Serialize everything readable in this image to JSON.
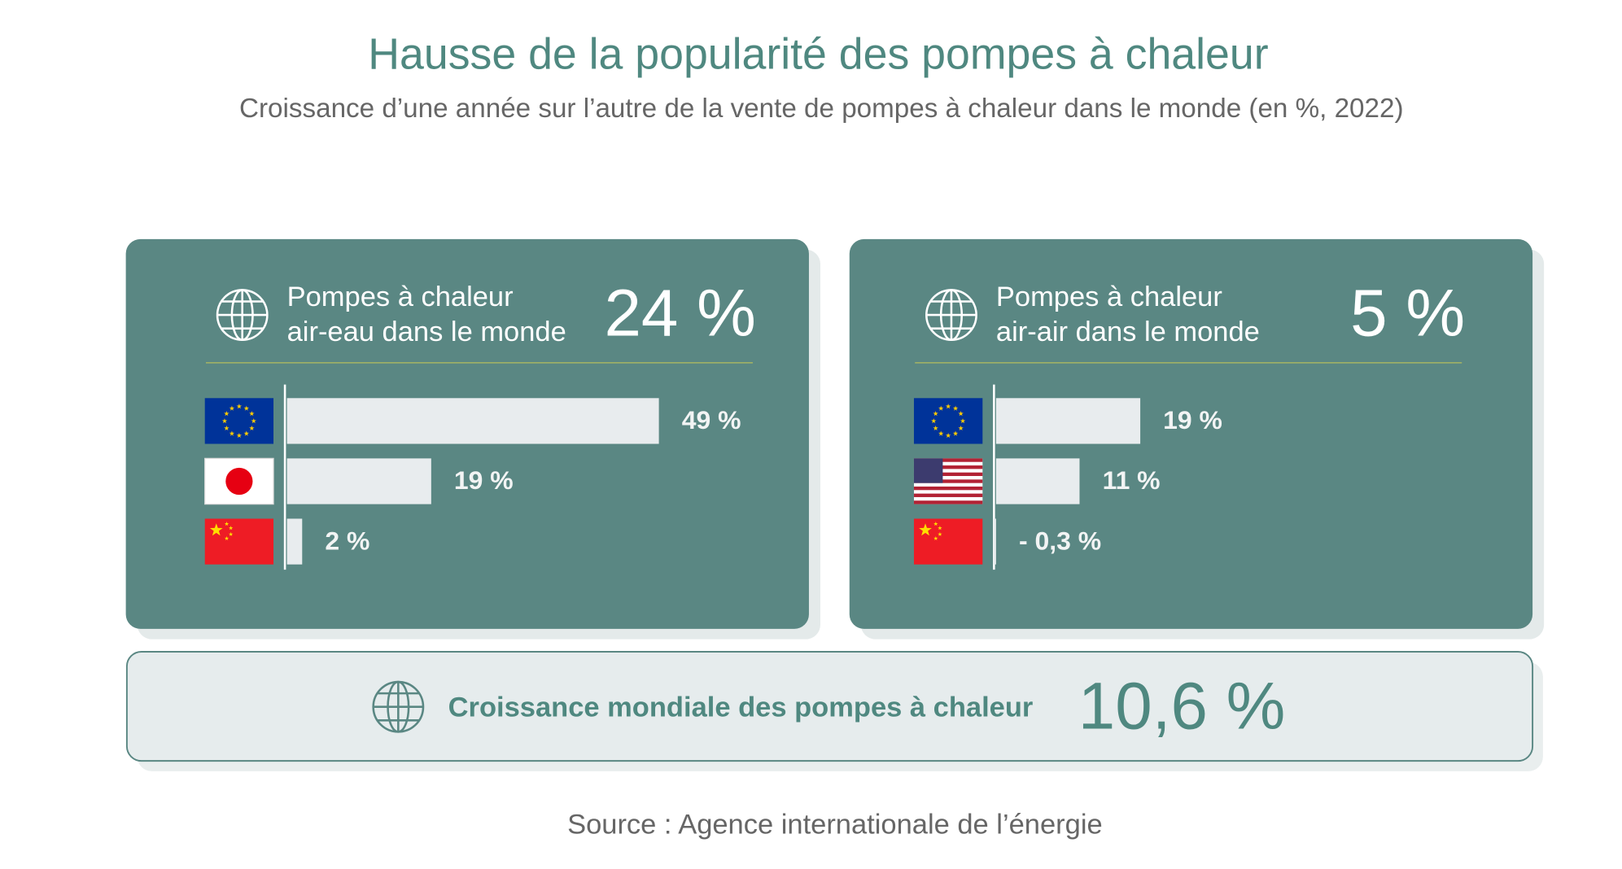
{
  "header": {
    "title": "Hausse de la popularité des pompes à chaleur",
    "subtitle": "Croissance d’une année sur l’autre de la vente de pompes à chaleur dans le monde (en %, 2022)"
  },
  "chart_data": [
    {
      "type": "bar",
      "title": [
        "Pompes à chaleur",
        "air-eau dans le monde"
      ],
      "total": 24,
      "total_label": "24 %",
      "categories": [
        null,
        null,
        null
      ],
      "values": [
        49,
        19,
        2
      ],
      "value_labels": [
        "49 %",
        "19 %",
        "2 %"
      ],
      "color": "#e8ecee"
    },
    {
      "type": "bar",
      "title": [
        "Pompes à chaleur",
        "air-air dans le monde"
      ],
      "total": 5,
      "total_label": "5 %",
      "categories": [
        null,
        null,
        null
      ],
      "values": [
        19,
        11,
        -0.3
      ],
      "value_labels": [
        "19 %",
        "11 %",
        "- 0,3 %"
      ],
      "color": "#e8ecee"
    }
  ],
  "global": {
    "label": "Croissance mondiale des pompes à chaleur",
    "value": 10.6,
    "value_label": "10,6 %"
  },
  "source": "Source : Agence internationale de l’énergie"
}
